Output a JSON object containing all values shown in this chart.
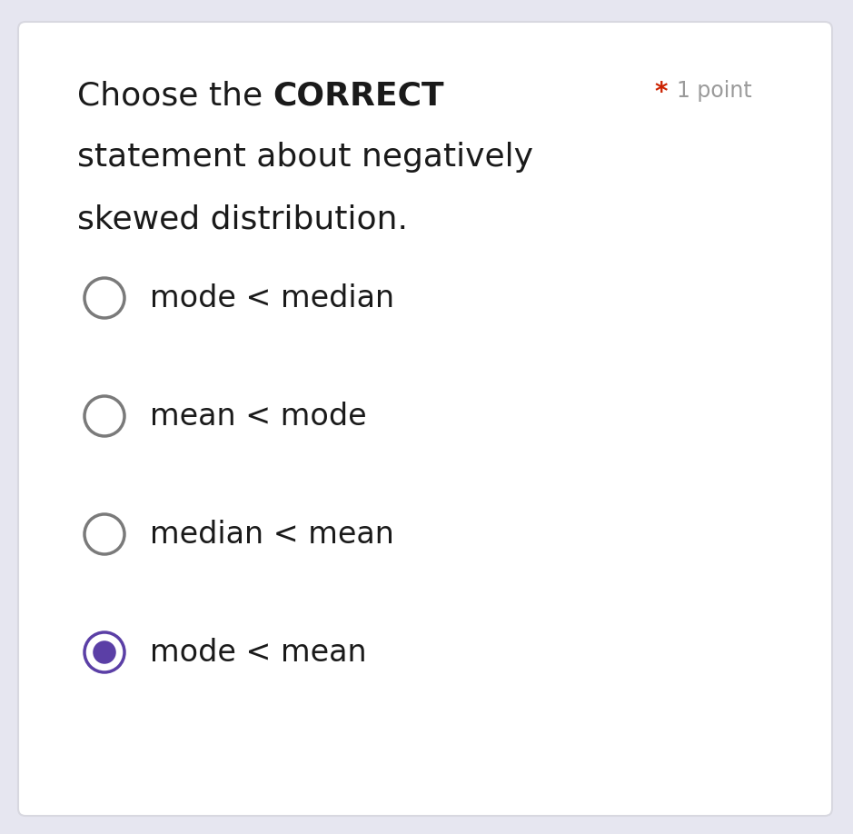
{
  "title_part1": "Choose the ",
  "title_part2": "CORRECT",
  "title_line2": "statement about negatively",
  "title_line3": "skewed distribution.",
  "asterisk": "*",
  "points_text": "1 point",
  "options": [
    "mode < median",
    "mean < mode",
    "median < mean",
    "mode < mean"
  ],
  "selected_index": 3,
  "bg_color": "#ffffff",
  "outer_bg": "#e6e6f0",
  "text_color": "#1a1a1a",
  "radio_unselected_color": "#7a7a7a",
  "radio_selected_fill": "#5b3fa6",
  "radio_selected_border": "#5b3fa6",
  "asterisk_color": "#cc2200",
  "points_color": "#9a9a9a",
  "font_size_title": 26,
  "font_size_options": 24,
  "font_size_points": 17
}
